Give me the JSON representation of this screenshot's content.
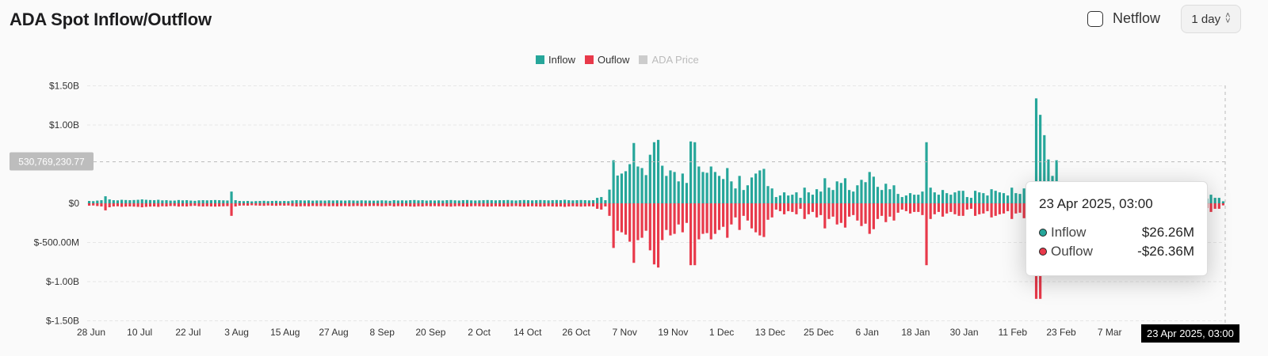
{
  "header": {
    "title": "ADA Spot Inflow/Outflow",
    "netflow_label": "Netflow",
    "interval_value": "1 day"
  },
  "tooltip": {
    "date": "23 Apr 2025, 03:00",
    "rows": [
      {
        "label": "Inflow",
        "value": "$26.26M",
        "color": "#26a69a"
      },
      {
        "label": "Ouflow",
        "value": "-$26.36M",
        "color": "#e8394a"
      }
    ]
  },
  "crosshair": {
    "price_label": "530,769,230.77",
    "time_label": "23 Apr 2025, 03:00"
  },
  "chart_data": {
    "type": "bar",
    "title": "ADA Spot Inflow/Outflow",
    "legend": [
      {
        "name": "Inflow",
        "color": "#26a69a",
        "active": true
      },
      {
        "name": "Ouflow",
        "color": "#e8394a",
        "active": true
      },
      {
        "name": "ADA Price",
        "color": "#cccccc",
        "active": false
      }
    ],
    "legend_position": "top-center",
    "grid": true,
    "y_ticks": [
      "$1.50B",
      "$1.00B",
      "$0",
      "$-500.00M",
      "$-1.00B",
      "$-1.50B"
    ],
    "ylim": [
      -1500000000,
      1500000000
    ],
    "x_ticks": [
      "28 Jun",
      "10 Jul",
      "22 Jul",
      "3 Aug",
      "15 Aug",
      "27 Aug",
      "8 Sep",
      "20 Sep",
      "2 Oct",
      "14 Oct",
      "26 Oct",
      "7 Nov",
      "19 Nov",
      "1 Dec",
      "13 Dec",
      "25 Dec",
      "6 Jan",
      "18 Jan",
      "30 Jan",
      "11 Feb",
      "23 Feb",
      "7 Mar",
      "19 Mar",
      "31 Mar"
    ],
    "x_range": [
      "28 Jun 2024",
      "23 Apr 2025"
    ],
    "series": [
      {
        "name": "Inflow",
        "unit": "$M",
        "values": [
          30,
          28,
          35,
          40,
          90,
          50,
          40,
          38,
          45,
          42,
          40,
          42,
          45,
          50,
          45,
          42,
          40,
          45,
          38,
          40,
          35,
          35,
          42,
          38,
          40,
          35,
          32,
          38,
          40,
          38,
          40,
          42,
          40,
          38,
          36,
          150,
          40,
          30,
          28,
          30,
          25,
          28,
          30,
          32,
          28,
          30,
          32,
          28,
          30,
          28,
          36,
          40,
          38,
          36,
          38,
          34,
          36,
          36,
          35,
          38,
          36,
          38,
          36,
          35,
          38,
          36,
          34,
          38,
          36,
          35,
          34,
          35,
          38,
          36,
          32,
          40,
          36,
          38,
          36,
          40,
          42,
          38,
          40,
          35,
          38,
          36,
          38,
          36,
          40,
          42,
          38,
          36,
          40,
          42,
          38,
          36,
          38,
          40,
          42,
          40,
          38,
          40,
          40,
          42,
          38,
          36,
          40,
          42,
          40,
          38,
          40,
          42,
          40,
          38,
          40,
          42,
          40,
          45,
          40,
          38,
          40,
          42,
          40,
          38,
          40,
          70,
          80,
          40,
          175,
          550,
          355,
          380,
          410,
          500,
          770,
          470,
          450,
          360,
          620,
          780,
          810,
          480,
          350,
          420,
          400,
          280,
          380,
          260,
          790,
          780,
          470,
          400,
          390,
          470,
          400,
          350,
          310,
          450,
          280,
          190,
          350,
          170,
          230,
          330,
          380,
          420,
          440,
          220,
          190,
          80,
          100,
          140,
          100,
          110,
          140,
          70,
          200,
          140,
          110,
          180,
          150,
          320,
          200,
          170,
          280,
          260,
          320,
          170,
          150,
          230,
          300,
          270,
          400,
          340,
          210,
          170,
          250,
          180,
          230,
          120,
          80,
          100,
          130,
          110,
          110,
          150,
          780,
          200,
          140,
          110,
          170,
          130,
          110,
          140,
          160,
          160,
          80,
          70,
          160,
          140,
          130,
          100,
          180,
          160,
          140,
          130,
          100,
          200,
          130,
          120,
          190,
          150,
          110,
          1340,
          1130,
          870,
          560,
          350,
          550,
          190,
          180,
          230,
          170,
          150,
          130,
          200,
          210,
          100,
          120,
          150,
          100,
          130,
          90,
          70,
          120,
          80,
          140,
          90,
          60,
          90,
          70,
          130,
          50,
          60,
          140,
          100,
          120,
          70,
          90,
          60,
          60,
          80,
          50,
          80,
          100,
          60,
          110,
          70,
          70,
          26
        ]
      },
      {
        "name": "Ouflow",
        "unit": "$M",
        "values": [
          -30,
          -28,
          -35,
          -40,
          -90,
          -50,
          -40,
          -38,
          -45,
          -42,
          -40,
          -42,
          -45,
          -50,
          -45,
          -42,
          -40,
          -45,
          -38,
          -40,
          -35,
          -35,
          -42,
          -38,
          -40,
          -35,
          -32,
          -38,
          -40,
          -38,
          -40,
          -42,
          -40,
          -38,
          -36,
          -160,
          -40,
          -30,
          -28,
          -30,
          -25,
          -28,
          -30,
          -32,
          -28,
          -30,
          -32,
          -28,
          -30,
          -28,
          -36,
          -40,
          -38,
          -36,
          -38,
          -34,
          -36,
          -36,
          -35,
          -38,
          -36,
          -38,
          -36,
          -35,
          -38,
          -36,
          -34,
          -38,
          -36,
          -35,
          -34,
          -35,
          -38,
          -36,
          -32,
          -40,
          -36,
          -38,
          -36,
          -40,
          -42,
          -38,
          -40,
          -35,
          -38,
          -36,
          -38,
          -36,
          -40,
          -42,
          -38,
          -36,
          -40,
          -42,
          -38,
          -36,
          -38,
          -40,
          -42,
          -40,
          -38,
          -40,
          -40,
          -42,
          -38,
          -36,
          -40,
          -42,
          -40,
          -38,
          -40,
          -42,
          -40,
          -38,
          -40,
          -42,
          -40,
          -45,
          -40,
          -38,
          -40,
          -42,
          -40,
          -38,
          -40,
          -70,
          -80,
          -40,
          -160,
          -570,
          -350,
          -370,
          -400,
          -490,
          -760,
          -470,
          -440,
          -350,
          -600,
          -780,
          -820,
          -470,
          -340,
          -410,
          -390,
          -270,
          -370,
          -250,
          -790,
          -790,
          -460,
          -390,
          -380,
          -460,
          -390,
          -340,
          -300,
          -440,
          -270,
          -180,
          -340,
          -160,
          -220,
          -320,
          -370,
          -410,
          -430,
          -210,
          -180,
          -80,
          -100,
          -140,
          -100,
          -110,
          -140,
          -70,
          -200,
          -140,
          -110,
          -180,
          -150,
          -320,
          -200,
          -170,
          -270,
          -250,
          -310,
          -170,
          -150,
          -220,
          -290,
          -260,
          -390,
          -330,
          -200,
          -160,
          -240,
          -170,
          -220,
          -120,
          -80,
          -100,
          -130,
          -110,
          -110,
          -150,
          -790,
          -200,
          -140,
          -110,
          -170,
          -130,
          -110,
          -140,
          -160,
          -160,
          -80,
          -70,
          -160,
          -140,
          -130,
          -100,
          -180,
          -160,
          -140,
          -130,
          -100,
          -200,
          -130,
          -120,
          -190,
          -150,
          -110,
          -1220,
          -1220,
          -860,
          -550,
          -340,
          -540,
          -190,
          -180,
          -220,
          -170,
          -150,
          -130,
          -200,
          -210,
          -100,
          -120,
          -150,
          -100,
          -130,
          -90,
          -70,
          -120,
          -80,
          -140,
          -90,
          -60,
          -90,
          -70,
          -130,
          -50,
          -60,
          -140,
          -100,
          -120,
          -70,
          -90,
          -60,
          -60,
          -80,
          -50,
          -80,
          -100,
          -60,
          -110,
          -70,
          -70,
          -26
        ]
      }
    ]
  }
}
